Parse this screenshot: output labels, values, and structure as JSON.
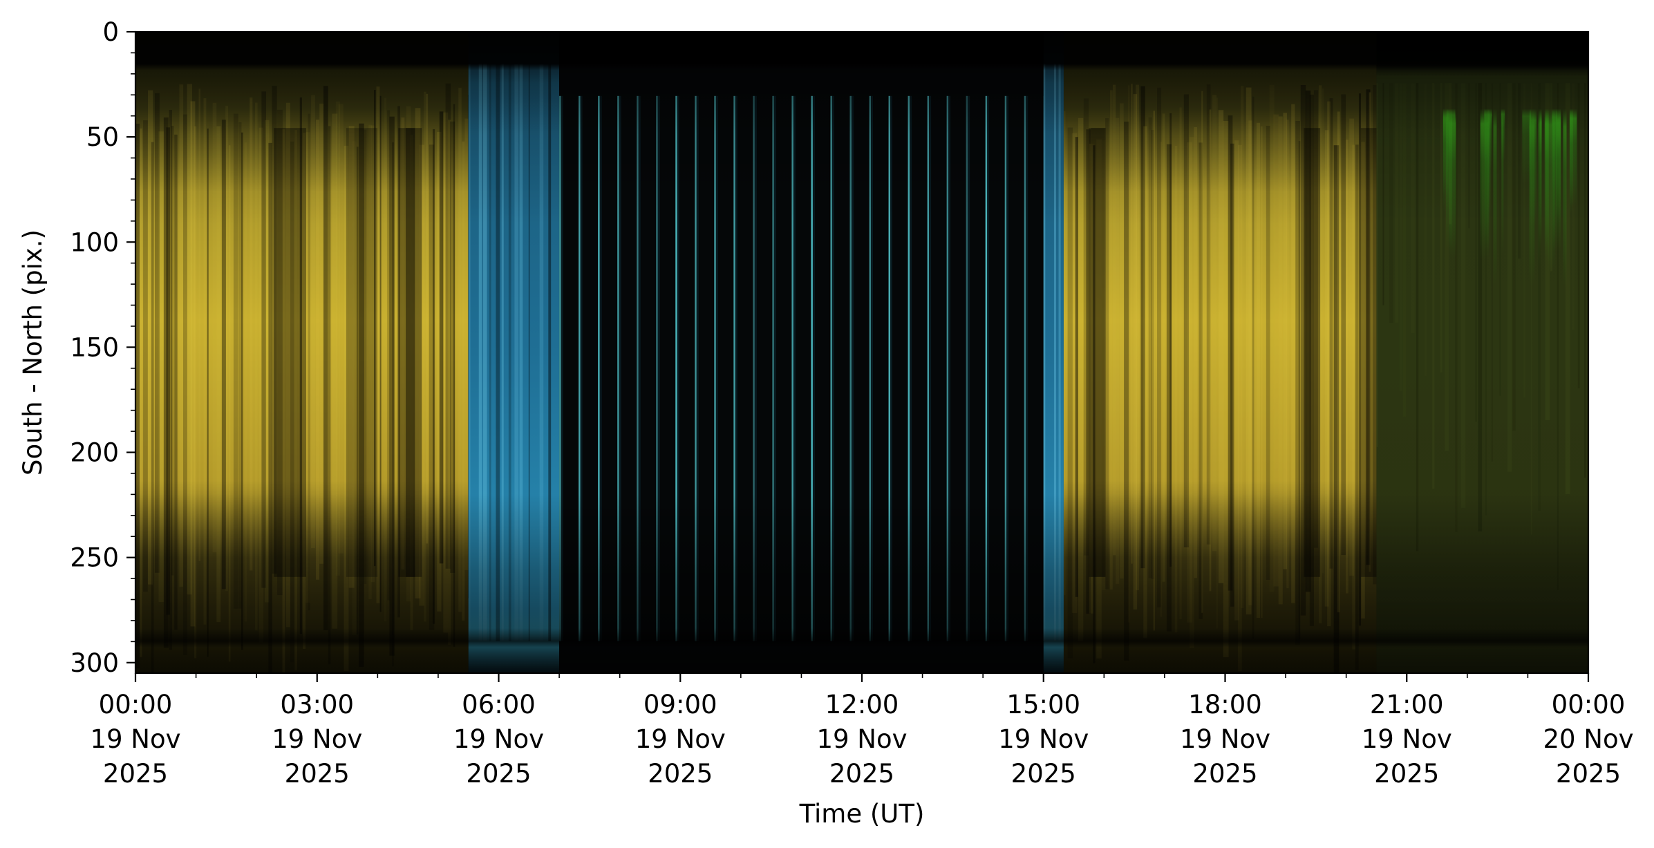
{
  "chart_data": {
    "type": "heatmap",
    "title": "",
    "xlabel": "Time (UT)",
    "ylabel": "South - North (pix.)",
    "xlim": [
      "2025-11-19 00:00",
      "2025-11-20 00:00"
    ],
    "ylim": [
      305,
      0
    ],
    "y_axis_inverted": true,
    "x_ticks": [
      {
        "value": "2025-11-19 00:00",
        "label": [
          "00:00",
          "19 Nov",
          "2025"
        ]
      },
      {
        "value": "2025-11-19 03:00",
        "label": [
          "03:00",
          "19 Nov",
          "2025"
        ]
      },
      {
        "value": "2025-11-19 06:00",
        "label": [
          "06:00",
          "19 Nov",
          "2025"
        ]
      },
      {
        "value": "2025-11-19 09:00",
        "label": [
          "09:00",
          "19 Nov",
          "2025"
        ]
      },
      {
        "value": "2025-11-19 12:00",
        "label": [
          "12:00",
          "19 Nov",
          "2025"
        ]
      },
      {
        "value": "2025-11-19 15:00",
        "label": [
          "15:00",
          "19 Nov",
          "2025"
        ]
      },
      {
        "value": "2025-11-19 18:00",
        "label": [
          "18:00",
          "19 Nov",
          "2025"
        ]
      },
      {
        "value": "2025-11-19 21:00",
        "label": [
          "21:00",
          "19 Nov",
          "2025"
        ]
      },
      {
        "value": "2025-11-20 00:00",
        "label": [
          "00:00",
          "20 Nov",
          "2025"
        ]
      }
    ],
    "y_ticks": [
      {
        "value": 0,
        "label": "0"
      },
      {
        "value": 50,
        "label": "50"
      },
      {
        "value": 100,
        "label": "100"
      },
      {
        "value": 150,
        "label": "150"
      },
      {
        "value": 200,
        "label": "200"
      },
      {
        "value": 250,
        "label": "250"
      },
      {
        "value": 300,
        "label": "300"
      }
    ],
    "time_segments": [
      {
        "start": "2025-11-19 00:00",
        "end": "2025-11-19 05:30",
        "appearance": "yellow auroral emission"
      },
      {
        "start": "2025-11-19 05:30",
        "end": "2025-11-19 07:00",
        "appearance": "blue twilight"
      },
      {
        "start": "2025-11-19 07:00",
        "end": "2025-11-19 15:00",
        "appearance": "dark daytime gaps with thin cyan calibration lines"
      },
      {
        "start": "2025-11-19 15:00",
        "end": "2025-11-19 15:20",
        "appearance": "blue twilight"
      },
      {
        "start": "2025-11-19 15:20",
        "end": "2025-11-19 20:30",
        "appearance": "yellow auroral emission"
      },
      {
        "start": "2025-11-19 20:30",
        "end": "2025-11-20 00:00",
        "appearance": "olive background with green emission near top"
      }
    ],
    "colors": {
      "aurora_yellow": "#c9b030",
      "twilight_blue": "#2a8fb8",
      "green_emission": "#3aa81c",
      "background_olive": "#2a3412",
      "night_black": "#000000",
      "cyan_line": "#5ad8e0"
    },
    "grid": false,
    "legend": "none"
  }
}
